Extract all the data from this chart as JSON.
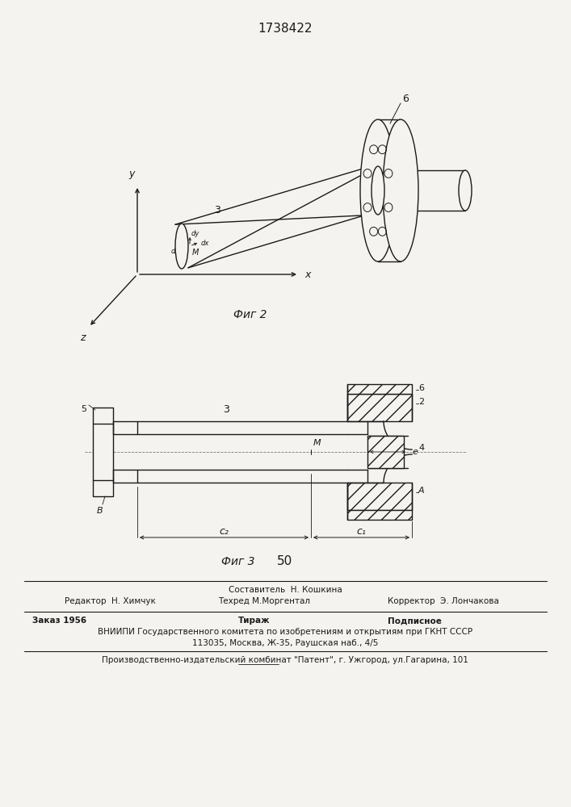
{
  "title": "1738422",
  "fig2_label": "Фиг 2",
  "fig3_label": "Фиг 3",
  "page_number": "50",
  "bg_color": "#f5f3ef",
  "line_color": "#1a1a1a",
  "footer": {
    "line1_center": "Составитель  Н. Кошкина",
    "line2_left": "Редактор  Н. Химчук",
    "line2_center": "Техред М.Моргентал",
    "line2_right": "Корректор  Э. Лончакова",
    "order": "Заказ 1956",
    "tirazh": "Тираж",
    "podpisnoe": "Подписное",
    "vniip1": "ВНИИПИ Государственного комитета по изобретениям и открытиям при ГКНТ СССР",
    "vniip2": "113035, Москва, Ж-35, Раушская наб., 4/5",
    "patent": "Производственно-издательский комбинат \"Патент\", г. Ужгород, ул.Гагарина, 101"
  }
}
